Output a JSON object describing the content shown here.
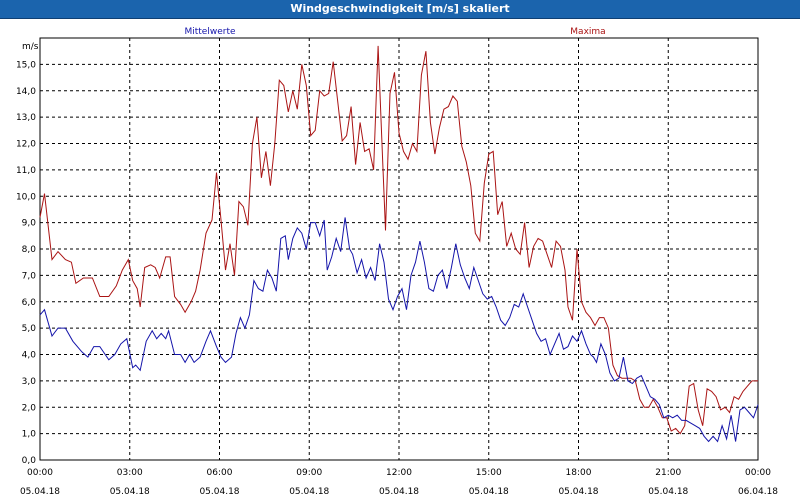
{
  "window": {
    "title": "Windgeschwindigkeit [m/s] skaliert"
  },
  "chart_data": {
    "type": "line",
    "title": "Windgeschwindigkeit [m/s] skaliert",
    "ylabel": "m/s",
    "xlabel": "",
    "ylim": [
      0,
      16
    ],
    "yticks": [
      "0,0",
      "1,0",
      "2,0",
      "3,0",
      "4,0",
      "5,0",
      "6,0",
      "7,0",
      "8,0",
      "9,0",
      "10,0",
      "11,0",
      "12,0",
      "13,0",
      "14,0",
      "15,0"
    ],
    "xticks": [
      {
        "time": "00:00",
        "date": "05.04.18"
      },
      {
        "time": "03:00",
        "date": "05.04.18"
      },
      {
        "time": "06:00",
        "date": "05.04.18"
      },
      {
        "time": "09:00",
        "date": "05.04.18"
      },
      {
        "time": "12:00",
        "date": "05.04.18"
      },
      {
        "time": "15:00",
        "date": "05.04.18"
      },
      {
        "time": "18:00",
        "date": "05.04.18"
      },
      {
        "time": "21:00",
        "date": "05.04.18"
      },
      {
        "time": "00:00",
        "date": "06.04.18"
      }
    ],
    "x_hours": [
      0,
      24
    ],
    "grid": true,
    "legend_position": "top",
    "series": [
      {
        "name": "Mittelwerte",
        "color": "#1414aa",
        "points": [
          [
            0.0,
            5.5
          ],
          [
            0.15,
            5.7
          ],
          [
            0.4,
            4.7
          ],
          [
            0.6,
            5.0
          ],
          [
            0.85,
            5.0
          ],
          [
            1.1,
            4.5
          ],
          [
            1.4,
            4.1
          ],
          [
            1.6,
            3.9
          ],
          [
            1.8,
            4.3
          ],
          [
            2.0,
            4.3
          ],
          [
            2.3,
            3.8
          ],
          [
            2.5,
            4.0
          ],
          [
            2.7,
            4.4
          ],
          [
            2.9,
            4.6
          ],
          [
            3.1,
            3.5
          ],
          [
            3.2,
            3.6
          ],
          [
            3.35,
            3.4
          ],
          [
            3.55,
            4.5
          ],
          [
            3.75,
            4.9
          ],
          [
            3.9,
            4.6
          ],
          [
            4.05,
            4.8
          ],
          [
            4.2,
            4.6
          ],
          [
            4.3,
            4.9
          ],
          [
            4.5,
            4.0
          ],
          [
            4.7,
            4.0
          ],
          [
            4.85,
            3.7
          ],
          [
            5.0,
            4.0
          ],
          [
            5.15,
            3.7
          ],
          [
            5.35,
            3.9
          ],
          [
            5.55,
            4.5
          ],
          [
            5.7,
            4.9
          ],
          [
            5.9,
            4.3
          ],
          [
            6.05,
            3.9
          ],
          [
            6.2,
            3.7
          ],
          [
            6.4,
            3.9
          ],
          [
            6.55,
            4.8
          ],
          [
            6.7,
            5.4
          ],
          [
            6.85,
            5.0
          ],
          [
            7.0,
            5.5
          ],
          [
            7.15,
            6.8
          ],
          [
            7.3,
            6.5
          ],
          [
            7.45,
            6.4
          ],
          [
            7.6,
            7.2
          ],
          [
            7.75,
            6.9
          ],
          [
            7.9,
            6.4
          ],
          [
            8.05,
            8.4
          ],
          [
            8.2,
            8.5
          ],
          [
            8.3,
            7.6
          ],
          [
            8.45,
            8.4
          ],
          [
            8.6,
            8.8
          ],
          [
            8.75,
            8.6
          ],
          [
            8.9,
            8.0
          ],
          [
            9.05,
            9.0
          ],
          [
            9.2,
            9.0
          ],
          [
            9.35,
            8.5
          ],
          [
            9.5,
            9.1
          ],
          [
            9.6,
            7.2
          ],
          [
            9.75,
            7.7
          ],
          [
            9.9,
            8.4
          ],
          [
            10.05,
            7.9
          ],
          [
            10.2,
            9.2
          ],
          [
            10.35,
            8.0
          ],
          [
            10.45,
            7.8
          ],
          [
            10.6,
            7.1
          ],
          [
            10.75,
            7.6
          ],
          [
            10.9,
            6.9
          ],
          [
            11.05,
            7.3
          ],
          [
            11.2,
            6.8
          ],
          [
            11.35,
            8.2
          ],
          [
            11.5,
            7.5
          ],
          [
            11.65,
            6.1
          ],
          [
            11.8,
            5.7
          ],
          [
            11.95,
            6.2
          ],
          [
            12.1,
            6.5
          ],
          [
            12.25,
            5.7
          ],
          [
            12.4,
            7.0
          ],
          [
            12.55,
            7.5
          ],
          [
            12.7,
            8.3
          ],
          [
            12.85,
            7.5
          ],
          [
            13.0,
            6.5
          ],
          [
            13.15,
            6.4
          ],
          [
            13.3,
            7.0
          ],
          [
            13.45,
            7.2
          ],
          [
            13.6,
            6.5
          ],
          [
            13.75,
            7.3
          ],
          [
            13.9,
            8.2
          ],
          [
            14.05,
            7.4
          ],
          [
            14.2,
            6.9
          ],
          [
            14.35,
            6.5
          ],
          [
            14.5,
            7.3
          ],
          [
            14.65,
            6.8
          ],
          [
            14.8,
            6.3
          ],
          [
            14.95,
            6.1
          ],
          [
            15.1,
            6.2
          ],
          [
            15.25,
            5.8
          ],
          [
            15.4,
            5.3
          ],
          [
            15.55,
            5.1
          ],
          [
            15.7,
            5.4
          ],
          [
            15.85,
            5.9
          ],
          [
            16.0,
            5.8
          ],
          [
            16.15,
            6.3
          ],
          [
            16.3,
            5.8
          ],
          [
            16.45,
            5.3
          ],
          [
            16.6,
            4.8
          ],
          [
            16.75,
            4.5
          ],
          [
            16.9,
            4.6
          ],
          [
            17.05,
            4.0
          ],
          [
            17.2,
            4.4
          ],
          [
            17.35,
            4.8
          ],
          [
            17.5,
            4.2
          ],
          [
            17.65,
            4.3
          ],
          [
            17.8,
            4.7
          ],
          [
            17.95,
            4.5
          ],
          [
            18.1,
            4.9
          ],
          [
            18.25,
            4.4
          ],
          [
            18.4,
            4.0
          ],
          [
            18.5,
            3.9
          ],
          [
            18.6,
            3.7
          ],
          [
            18.75,
            4.4
          ],
          [
            18.9,
            4.0
          ],
          [
            19.05,
            3.3
          ],
          [
            19.2,
            3.0
          ],
          [
            19.35,
            3.1
          ],
          [
            19.5,
            3.9
          ],
          [
            19.65,
            3.0
          ],
          [
            19.8,
            2.9
          ],
          [
            19.95,
            3.1
          ],
          [
            20.1,
            3.2
          ],
          [
            20.25,
            2.8
          ],
          [
            20.4,
            2.4
          ],
          [
            20.55,
            2.3
          ],
          [
            20.7,
            2.1
          ],
          [
            20.85,
            1.6
          ],
          [
            21.0,
            1.7
          ],
          [
            21.15,
            1.6
          ],
          [
            21.3,
            1.7
          ],
          [
            21.45,
            1.5
          ],
          [
            21.6,
            1.5
          ],
          [
            21.75,
            1.4
          ],
          [
            21.9,
            1.3
          ],
          [
            22.05,
            1.2
          ],
          [
            22.2,
            0.9
          ],
          [
            22.35,
            0.7
          ],
          [
            22.5,
            0.9
          ],
          [
            22.65,
            0.7
          ],
          [
            22.8,
            1.3
          ],
          [
            22.95,
            0.8
          ],
          [
            23.1,
            1.7
          ],
          [
            23.25,
            0.7
          ],
          [
            23.4,
            1.9
          ],
          [
            23.55,
            2.0
          ],
          [
            23.7,
            1.8
          ],
          [
            23.85,
            1.6
          ],
          [
            24.0,
            2.1
          ],
          [
            24.15,
            2.0
          ],
          [
            24.3,
            1.4
          ],
          [
            24.45,
            1.6
          ]
        ]
      },
      {
        "name": "Maxima",
        "color": "#aa1414",
        "points": [
          [
            0.0,
            9.2
          ],
          [
            0.15,
            10.1
          ],
          [
            0.4,
            7.6
          ],
          [
            0.6,
            7.9
          ],
          [
            0.85,
            7.6
          ],
          [
            1.05,
            7.5
          ],
          [
            1.2,
            6.7
          ],
          [
            1.45,
            6.9
          ],
          [
            1.75,
            6.9
          ],
          [
            2.0,
            6.2
          ],
          [
            2.3,
            6.2
          ],
          [
            2.55,
            6.6
          ],
          [
            2.75,
            7.2
          ],
          [
            2.95,
            7.6
          ],
          [
            3.1,
            6.8
          ],
          [
            3.25,
            6.5
          ],
          [
            3.35,
            5.8
          ],
          [
            3.5,
            7.3
          ],
          [
            3.7,
            7.4
          ],
          [
            3.85,
            7.3
          ],
          [
            4.0,
            6.9
          ],
          [
            4.2,
            7.7
          ],
          [
            4.35,
            7.7
          ],
          [
            4.5,
            6.2
          ],
          [
            4.7,
            5.9
          ],
          [
            4.85,
            5.6
          ],
          [
            5.05,
            6.0
          ],
          [
            5.2,
            6.4
          ],
          [
            5.35,
            7.2
          ],
          [
            5.55,
            8.6
          ],
          [
            5.75,
            9.1
          ],
          [
            5.9,
            10.9
          ],
          [
            6.05,
            9.1
          ],
          [
            6.2,
            7.2
          ],
          [
            6.35,
            8.2
          ],
          [
            6.5,
            7.0
          ],
          [
            6.65,
            9.8
          ],
          [
            6.8,
            9.6
          ],
          [
            6.95,
            8.9
          ],
          [
            7.1,
            12.0
          ],
          [
            7.25,
            13.0
          ],
          [
            7.4,
            10.7
          ],
          [
            7.55,
            11.7
          ],
          [
            7.7,
            10.4
          ],
          [
            7.85,
            12.0
          ],
          [
            8.0,
            14.4
          ],
          [
            8.15,
            14.2
          ],
          [
            8.3,
            13.2
          ],
          [
            8.45,
            14.0
          ],
          [
            8.6,
            13.3
          ],
          [
            8.75,
            15.0
          ],
          [
            8.9,
            14.2
          ],
          [
            9.05,
            12.3
          ],
          [
            9.2,
            12.5
          ],
          [
            9.35,
            14.0
          ],
          [
            9.5,
            13.8
          ],
          [
            9.65,
            13.9
          ],
          [
            9.8,
            15.1
          ],
          [
            9.95,
            13.6
          ],
          [
            10.1,
            12.1
          ],
          [
            10.25,
            12.3
          ],
          [
            10.4,
            13.4
          ],
          [
            10.55,
            11.2
          ],
          [
            10.7,
            12.8
          ],
          [
            10.85,
            11.7
          ],
          [
            11.0,
            11.8
          ],
          [
            11.15,
            11.0
          ],
          [
            11.3,
            15.7
          ],
          [
            11.45,
            11.5
          ],
          [
            11.55,
            8.7
          ],
          [
            11.7,
            13.9
          ],
          [
            11.85,
            14.7
          ],
          [
            12.0,
            12.4
          ],
          [
            12.15,
            11.7
          ],
          [
            12.3,
            11.4
          ],
          [
            12.45,
            12.0
          ],
          [
            12.6,
            11.7
          ],
          [
            12.75,
            14.6
          ],
          [
            12.9,
            15.5
          ],
          [
            13.05,
            12.8
          ],
          [
            13.2,
            11.6
          ],
          [
            13.35,
            12.6
          ],
          [
            13.5,
            13.3
          ],
          [
            13.65,
            13.4
          ],
          [
            13.8,
            13.8
          ],
          [
            13.95,
            13.6
          ],
          [
            14.1,
            11.9
          ],
          [
            14.25,
            11.3
          ],
          [
            14.4,
            10.4
          ],
          [
            14.55,
            8.6
          ],
          [
            14.7,
            8.3
          ],
          [
            14.85,
            10.5
          ],
          [
            15.0,
            11.6
          ],
          [
            15.15,
            11.7
          ],
          [
            15.3,
            9.3
          ],
          [
            15.45,
            9.8
          ],
          [
            15.6,
            8.1
          ],
          [
            15.75,
            8.6
          ],
          [
            15.9,
            8.0
          ],
          [
            16.05,
            7.8
          ],
          [
            16.2,
            9.0
          ],
          [
            16.35,
            7.3
          ],
          [
            16.5,
            8.1
          ],
          [
            16.65,
            8.4
          ],
          [
            16.8,
            8.3
          ],
          [
            16.95,
            7.8
          ],
          [
            17.1,
            7.3
          ],
          [
            17.25,
            8.3
          ],
          [
            17.4,
            8.1
          ],
          [
            17.55,
            7.2
          ],
          [
            17.65,
            5.8
          ],
          [
            17.8,
            5.3
          ],
          [
            17.95,
            8.0
          ],
          [
            18.1,
            6.0
          ],
          [
            18.25,
            5.6
          ],
          [
            18.4,
            5.4
          ],
          [
            18.55,
            5.1
          ],
          [
            18.7,
            5.4
          ],
          [
            18.85,
            5.4
          ],
          [
            19.0,
            5.0
          ],
          [
            19.15,
            3.6
          ],
          [
            19.3,
            3.2
          ],
          [
            19.45,
            3.1
          ],
          [
            19.6,
            3.1
          ],
          [
            19.75,
            3.1
          ],
          [
            19.9,
            3.0
          ],
          [
            20.05,
            2.3
          ],
          [
            20.2,
            2.0
          ],
          [
            20.35,
            2.0
          ],
          [
            20.5,
            2.3
          ],
          [
            20.65,
            2.0
          ],
          [
            20.8,
            1.6
          ],
          [
            20.95,
            1.6
          ],
          [
            21.1,
            1.1
          ],
          [
            21.25,
            1.2
          ],
          [
            21.4,
            1.0
          ],
          [
            21.55,
            1.3
          ],
          [
            21.7,
            2.8
          ],
          [
            21.85,
            2.9
          ],
          [
            22.0,
            1.9
          ],
          [
            22.15,
            1.3
          ],
          [
            22.3,
            2.7
          ],
          [
            22.45,
            2.6
          ],
          [
            22.6,
            2.4
          ],
          [
            22.75,
            1.9
          ],
          [
            22.9,
            2.0
          ],
          [
            23.05,
            1.8
          ],
          [
            23.2,
            2.4
          ],
          [
            23.35,
            2.3
          ],
          [
            23.5,
            2.6
          ],
          [
            23.65,
            2.8
          ],
          [
            23.8,
            3.0
          ],
          [
            24.0,
            3.0
          ]
        ]
      }
    ]
  }
}
